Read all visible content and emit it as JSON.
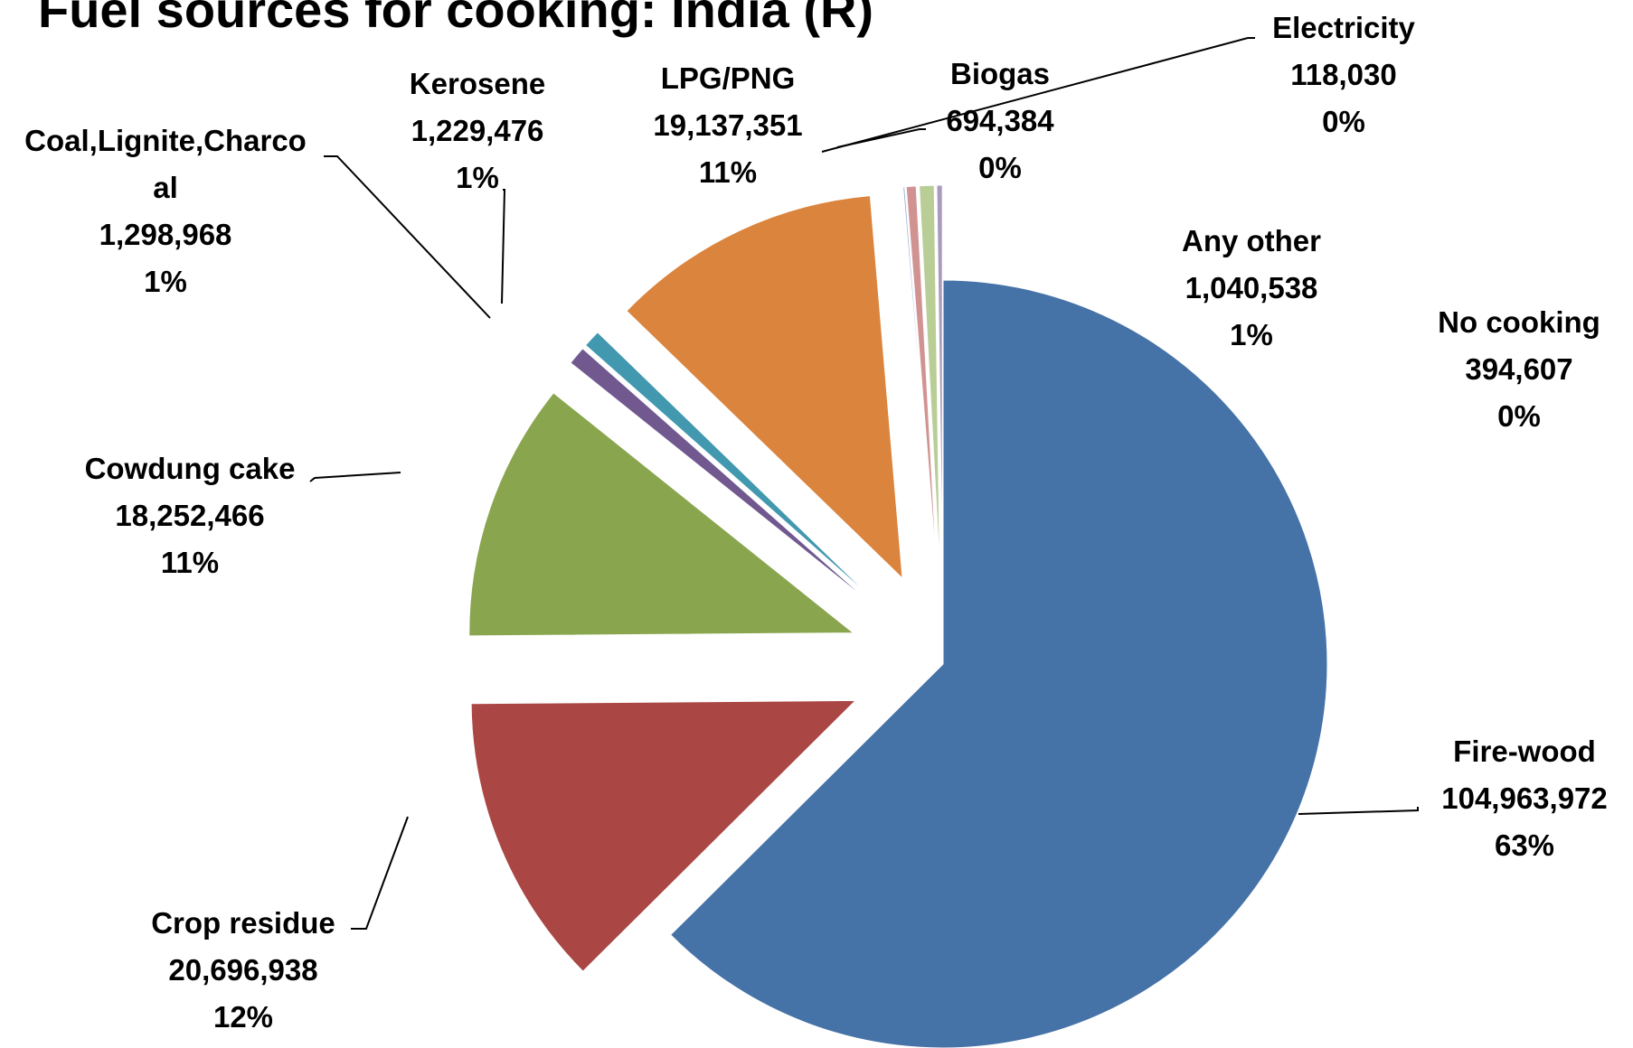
{
  "chart_data": {
    "type": "pie",
    "title": "Fuel sources for cooking: India (R)",
    "slices": [
      {
        "name": "Fire-wood",
        "value": 104963972,
        "value_label": "104,963,972",
        "percent_label": "63%",
        "color": "#4572A7",
        "exploded": false
      },
      {
        "name": "Crop residue",
        "value": 20696938,
        "value_label": "20,696,938",
        "percent_label": "12%",
        "color": "#AA4643",
        "exploded": true
      },
      {
        "name": "Cowdung cake",
        "value": 18252466,
        "value_label": "18,252,466",
        "percent_label": "11%",
        "color": "#89A54E",
        "exploded": true
      },
      {
        "name": "Coal,Lignite,Charcoal",
        "name_lines": [
          "Coal,Lignite,Charco",
          "al"
        ],
        "value": 1298968,
        "value_label": "1,298,968",
        "percent_label": "1%",
        "color": "#71588F",
        "exploded": true
      },
      {
        "name": "Kerosene",
        "value": 1229476,
        "value_label": "1,229,476",
        "percent_label": "1%",
        "color": "#4198AF",
        "exploded": true
      },
      {
        "name": "LPG/PNG",
        "value": 19137351,
        "value_label": "19,137,351",
        "percent_label": "11%",
        "color": "#DB843D",
        "exploded": true
      },
      {
        "name": "Electricity",
        "value": 118030,
        "value_label": "118,030",
        "percent_label": "0%",
        "color": "#93A9CF",
        "exploded": true
      },
      {
        "name": "Biogas",
        "value": 694384,
        "value_label": "694,384",
        "percent_label": "0%",
        "color": "#D19392",
        "exploded": true
      },
      {
        "name": "Any other",
        "value": 1040538,
        "value_label": "1,040,538",
        "percent_label": "1%",
        "color": "#B9CD96",
        "exploded": true
      },
      {
        "name": "No cooking",
        "value": 394607,
        "value_label": "394,607",
        "percent_label": "0%",
        "color": "#A99BBD",
        "exploded": true
      }
    ]
  }
}
